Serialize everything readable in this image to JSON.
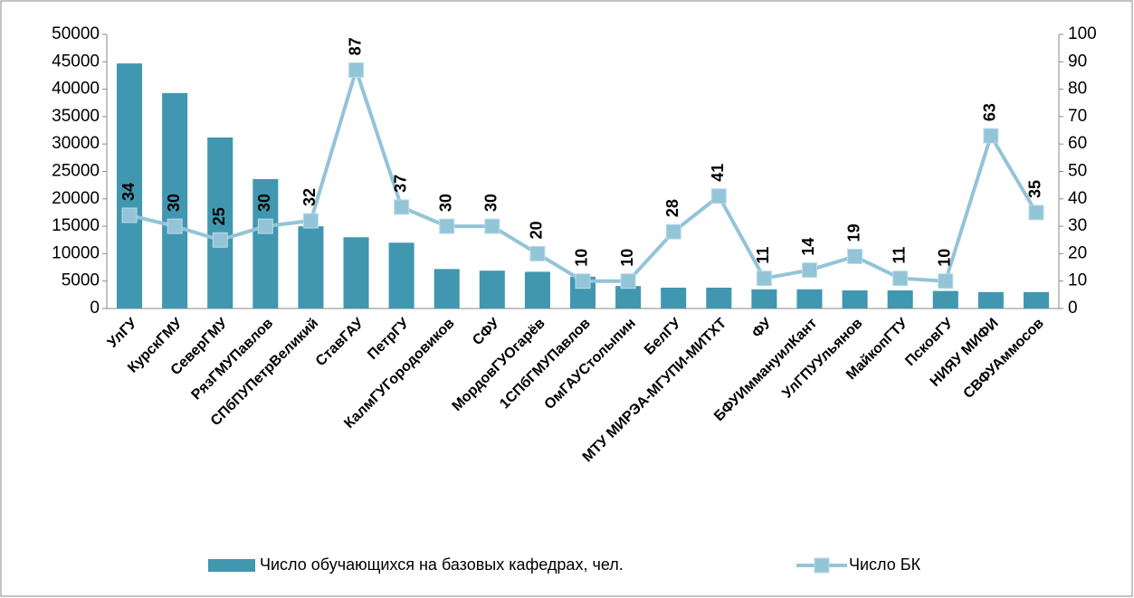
{
  "chart_data": {
    "type": "bar-line",
    "categories": [
      "УлГУ",
      "КурскГМУ",
      "СеверГМУ",
      "РязГМУПавлов",
      "СПбПУПетрВеликий",
      "СтавГАУ",
      "ПетрГУ",
      "КалмГУГородовиков",
      "СФУ",
      "МордовГУОгарёв",
      "1СПбГМУПавлов",
      "ОмГАУСтолыпин",
      "БелГУ",
      "МТУ МИРЭА-МГУПИ-МИТХТ",
      "ФУ",
      "БФУИммануилКант",
      "УлГПУУльянов",
      "МайкопГТУ",
      "ПсковГУ",
      "НИЯУ МИФИ",
      "СВФУАммосов"
    ],
    "series": [
      {
        "name": "Число обучающихся на базовых кафедрах, чел.",
        "type": "bar",
        "color": "#4197b0",
        "values": [
          44700,
          39300,
          31200,
          23600,
          15000,
          13000,
          12000,
          7200,
          6900,
          6700,
          5800,
          4100,
          3800,
          3800,
          3500,
          3500,
          3300,
          3300,
          3200,
          3000,
          3000
        ]
      },
      {
        "name": "Число БК",
        "type": "line",
        "axis": "y2",
        "color": "#93c4d8",
        "values": [
          34,
          30,
          25,
          30,
          32,
          87,
          37,
          30,
          30,
          20,
          10,
          10,
          28,
          41,
          11,
          14,
          19,
          11,
          10,
          63,
          35
        ]
      }
    ],
    "ylim": [
      0,
      50000
    ],
    "yticks": [
      0,
      5000,
      10000,
      15000,
      20000,
      25000,
      30000,
      35000,
      40000,
      45000,
      50000
    ],
    "y2lim": [
      0,
      100
    ],
    "y2ticks": [
      0,
      10,
      20,
      30,
      40,
      50,
      60,
      70,
      80,
      90,
      100
    ],
    "legend": "bottom"
  }
}
